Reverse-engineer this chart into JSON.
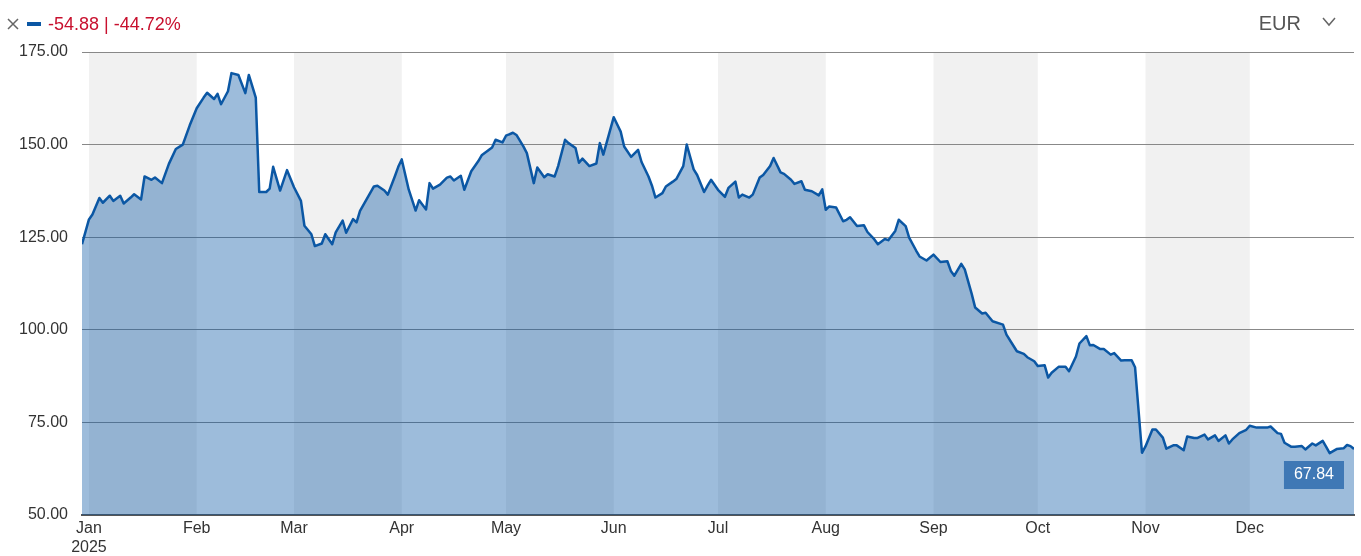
{
  "chart_data": {
    "type": "area",
    "annotations": [
      "-54.88 | -44.72%",
      "EUR",
      {
        "text": "67.84",
        "x": "2025-12-31",
        "y": 67.84
      }
    ],
    "xlim": [
      "2024-12-30",
      "2025-12-31"
    ],
    "xticks": [
      {
        "value": "2025-01-01",
        "label": "Jan\n2025"
      },
      {
        "value": "2025-02-01",
        "label": "Feb"
      },
      {
        "value": "2025-03-01",
        "label": "Mar"
      },
      {
        "value": "2025-04-01",
        "label": "Apr"
      },
      {
        "value": "2025-05-01",
        "label": "May"
      },
      {
        "value": "2025-06-01",
        "label": "Jun"
      },
      {
        "value": "2025-07-01",
        "label": "Jul"
      },
      {
        "value": "2025-08-01",
        "label": "Aug"
      },
      {
        "value": "2025-09-01",
        "label": "Sep"
      },
      {
        "value": "2025-10-01",
        "label": "Oct"
      },
      {
        "value": "2025-11-01",
        "label": "Nov"
      },
      {
        "value": "2025-12-01",
        "label": "Dec"
      }
    ],
    "ylim": [
      50,
      175
    ],
    "yticks": [
      {
        "value": 50,
        "label": "50.00"
      },
      {
        "value": 75,
        "label": "75.00"
      },
      {
        "value": 100,
        "label": "100.00"
      },
      {
        "value": 125,
        "label": "125.00"
      },
      {
        "value": 150,
        "label": "150.00"
      },
      {
        "value": 175,
        "label": "175.00"
      }
    ],
    "grid": "y",
    "bands": [
      {
        "axis": "x",
        "from": "2025-01-01",
        "to": "2025-02-01",
        "color": "#f1f1f1"
      },
      {
        "axis": "x",
        "from": "2025-03-01",
        "to": "2025-04-01",
        "color": "#f1f1f1"
      },
      {
        "axis": "x",
        "from": "2025-05-01",
        "to": "2025-06-01",
        "color": "#f1f1f1"
      },
      {
        "axis": "x",
        "from": "2025-07-01",
        "to": "2025-08-01",
        "color": "#f1f1f1"
      },
      {
        "axis": "x",
        "from": "2025-09-01",
        "to": "2025-10-01",
        "color": "#f1f1f1"
      },
      {
        "axis": "x",
        "from": "2025-11-01",
        "to": "2025-12-01",
        "color": "#f1f1f1"
      }
    ],
    "series": [
      {
        "color": "#0b57a4",
        "x": [
          "2024-12-30",
          "2025-01-01",
          "2025-01-02",
          "2025-01-04",
          "2025-01-05",
          "2025-01-07",
          "2025-01-08",
          "2025-01-10",
          "2025-01-11",
          "2025-01-13",
          "2025-01-14",
          "2025-01-16",
          "2025-01-17",
          "2025-01-19",
          "2025-01-20",
          "2025-01-22",
          "2025-01-24",
          "2025-01-26",
          "2025-01-28",
          "2025-01-30",
          "2025-02-01",
          "2025-02-03",
          "2025-02-04",
          "2025-02-06",
          "2025-02-07",
          "2025-02-08",
          "2025-02-10",
          "2025-02-11",
          "2025-02-13",
          "2025-02-15",
          "2025-02-16",
          "2025-02-18",
          "2025-02-19",
          "2025-02-21",
          "2025-02-22",
          "2025-02-23",
          "2025-02-25",
          "2025-02-27",
          "2025-03-01",
          "2025-03-03",
          "2025-03-04",
          "2025-03-06",
          "2025-03-07",
          "2025-03-09",
          "2025-03-10",
          "2025-03-12",
          "2025-03-13",
          "2025-03-15",
          "2025-03-16",
          "2025-03-18",
          "2025-03-19",
          "2025-03-20",
          "2025-03-22",
          "2025-03-24",
          "2025-03-25",
          "2025-03-27",
          "2025-03-28",
          "2025-03-30",
          "2025-03-31",
          "2025-04-01",
          "2025-04-03",
          "2025-04-05",
          "2025-04-06",
          "2025-04-08",
          "2025-04-09",
          "2025-04-10",
          "2025-04-12",
          "2025-04-14",
          "2025-04-15",
          "2025-04-16",
          "2025-04-18",
          "2025-04-19",
          "2025-04-21",
          "2025-04-23",
          "2025-04-24",
          "2025-04-27",
          "2025-04-28",
          "2025-04-30",
          "2025-05-01",
          "2025-05-03",
          "2025-05-04",
          "2025-05-06",
          "2025-05-07",
          "2025-05-09",
          "2025-05-10",
          "2025-05-12",
          "2025-05-13",
          "2025-05-15",
          "2025-05-16",
          "2025-05-18",
          "2025-05-19",
          "2025-05-21",
          "2025-05-22",
          "2025-05-23",
          "2025-05-25",
          "2025-05-27",
          "2025-05-28",
          "2025-05-29",
          "2025-06-01",
          "2025-06-03",
          "2025-06-04",
          "2025-06-06",
          "2025-06-08",
          "2025-06-09",
          "2025-06-11",
          "2025-06-12",
          "2025-06-13",
          "2025-06-15",
          "2025-06-16",
          "2025-06-18",
          "2025-06-19",
          "2025-06-21",
          "2025-06-22",
          "2025-06-24",
          "2025-06-25",
          "2025-06-27",
          "2025-06-28",
          "2025-06-29",
          "2025-07-01",
          "2025-07-03",
          "2025-07-04",
          "2025-07-06",
          "2025-07-07",
          "2025-07-08",
          "2025-07-10",
          "2025-07-11",
          "2025-07-13",
          "2025-07-14",
          "2025-07-16",
          "2025-07-17",
          "2025-07-19",
          "2025-07-20",
          "2025-07-22",
          "2025-07-23",
          "2025-07-25",
          "2025-07-26",
          "2025-07-28",
          "2025-07-30",
          "2025-07-31",
          "2025-08-01",
          "2025-08-02",
          "2025-08-04",
          "2025-08-06",
          "2025-08-07",
          "2025-08-08",
          "2025-08-10",
          "2025-08-12",
          "2025-08-13",
          "2025-08-15",
          "2025-08-16",
          "2025-08-18",
          "2025-08-19",
          "2025-08-21",
          "2025-08-22",
          "2025-08-24",
          "2025-08-25",
          "2025-08-27",
          "2025-08-28",
          "2025-08-30",
          "2025-09-01",
          "2025-09-03",
          "2025-09-05",
          "2025-09-06",
          "2025-09-07",
          "2025-09-09",
          "2025-09-10",
          "2025-09-12",
          "2025-09-13",
          "2025-09-15",
          "2025-09-16",
          "2025-09-18",
          "2025-09-21",
          "2025-09-22",
          "2025-09-24",
          "2025-09-25",
          "2025-09-27",
          "2025-09-28",
          "2025-09-30",
          "2025-10-01",
          "2025-10-03",
          "2025-10-04",
          "2025-10-05",
          "2025-10-07",
          "2025-10-09",
          "2025-10-10",
          "2025-10-12",
          "2025-10-13",
          "2025-10-15",
          "2025-10-16",
          "2025-10-17",
          "2025-10-19",
          "2025-10-20",
          "2025-10-22",
          "2025-10-23",
          "2025-10-25",
          "2025-10-26",
          "2025-10-28",
          "2025-10-29",
          "2025-10-31",
          "2025-11-01",
          "2025-11-03",
          "2025-11-04",
          "2025-11-06",
          "2025-11-07",
          "2025-11-09",
          "2025-11-10",
          "2025-11-12",
          "2025-11-13",
          "2025-11-15",
          "2025-11-16",
          "2025-11-18",
          "2025-11-19",
          "2025-11-21",
          "2025-11-22",
          "2025-11-24",
          "2025-11-25",
          "2025-11-26",
          "2025-11-28",
          "2025-11-30",
          "2025-12-01",
          "2025-12-03",
          "2025-12-04",
          "2025-12-06",
          "2025-12-07",
          "2025-12-09",
          "2025-12-10",
          "2025-12-11",
          "2025-12-13",
          "2025-12-14",
          "2025-12-16",
          "2025-12-17",
          "2025-12-19",
          "2025-12-20",
          "2025-12-22",
          "2025-12-23",
          "2025-12-24",
          "2025-12-26",
          "2025-12-28",
          "2025-12-29",
          "2025-12-30",
          "2025-12-31"
        ],
        "values": [
          123.1,
          129.8,
          131.1,
          135.6,
          134.3,
          136.2,
          134.8,
          136.2,
          134.1,
          135.7,
          136.6,
          135.2,
          141.4,
          140.5,
          141.1,
          139.6,
          144.8,
          148.8,
          150.0,
          155.2,
          159.8,
          162.7,
          164.0,
          162.3,
          163.7,
          160.9,
          164.4,
          169.3,
          168.8,
          163.9,
          168.8,
          162.7,
          137.2,
          137.2,
          138.1,
          144.0,
          137.6,
          143.1,
          138.5,
          134.8,
          128.1,
          125.8,
          122.6,
          123.3,
          125.8,
          123.1,
          126.3,
          129.5,
          126.2,
          129.9,
          129.0,
          132.1,
          135.4,
          138.7,
          138.9,
          137.6,
          136.5,
          141.4,
          144.0,
          146.0,
          137.9,
          132.2,
          135.0,
          132.5,
          139.6,
          138.1,
          139.2,
          141.1,
          141.4,
          140.3,
          141.6,
          137.8,
          142.8,
          145.5,
          147.1,
          149.2,
          151.3,
          150.6,
          152.4,
          153.2,
          152.6,
          149.5,
          147.7,
          139.6,
          143.8,
          141.2,
          142.0,
          141.4,
          144.2,
          151.3,
          150.4,
          149.1,
          145.1,
          146.2,
          144.2,
          144.9,
          150.4,
          147.3,
          157.4,
          153.5,
          149.5,
          146.7,
          148.6,
          145.3,
          141.4,
          138.9,
          135.7,
          136.9,
          138.7,
          140.0,
          140.7,
          144.2,
          150.0,
          143.3,
          141.8,
          137.2,
          138.9,
          140.5,
          137.8,
          135.9,
          138.3,
          140.0,
          135.7,
          136.5,
          135.7,
          136.5,
          141.1,
          141.8,
          144.2,
          146.4,
          142.5,
          142.1,
          140.5,
          139.4,
          140.1,
          137.8,
          137.4,
          136.3,
          137.9,
          132.4,
          133.3,
          133.0,
          129.3,
          129.7,
          130.4,
          128.0,
          128.2,
          126.4,
          124.4,
          123.1,
          124.5,
          124.2,
          126.7,
          129.7,
          128.0,
          124.9,
          121.4,
          119.8,
          118.7,
          120.3,
          118.3,
          118.5,
          115.9,
          114.6,
          117.8,
          116.3,
          109.7,
          106.0,
          104.4,
          104.6,
          102.3,
          101.4,
          98.7,
          95.7,
          94.2,
          93.5,
          92.6,
          91.5,
          90.2,
          90.4,
          87.1,
          88.4,
          90.0,
          90.0,
          88.8,
          92.8,
          96.3,
          98.3,
          95.8,
          95.9,
          94.8,
          94.8,
          93.3,
          93.7,
          91.7,
          91.8,
          91.8,
          89.9,
          66.8,
          68.5,
          73.1,
          73.1,
          70.9,
          67.9,
          68.8,
          68.8,
          67.5,
          71.2,
          70.8,
          70.8,
          71.7,
          70.4,
          71.5,
          70.0,
          71.5,
          69.3,
          70.4,
          72.1,
          73.0,
          74.1,
          73.6,
          73.6,
          73.6,
          73.9,
          72.1,
          71.9,
          69.5,
          68.4,
          68.4,
          68.6,
          67.7,
          69.3,
          68.8,
          70.0,
          68.4,
          66.7,
          67.8,
          68.0,
          68.9,
          68.6,
          67.84
        ]
      }
    ]
  }
}
